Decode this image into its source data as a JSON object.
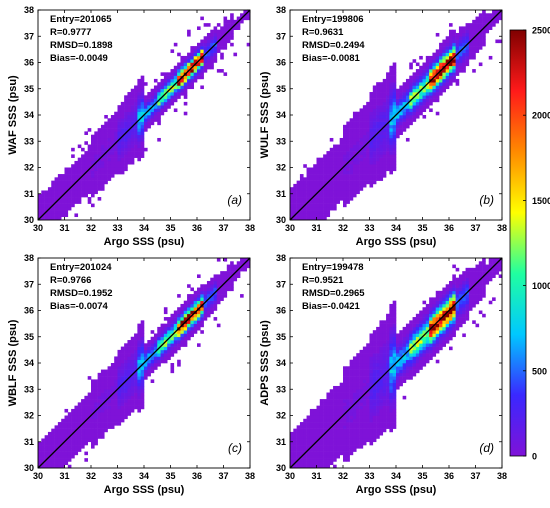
{
  "chart_data": [
    {
      "type": "heatmap",
      "panel_label": "(a)",
      "xlabel": "Argo SSS (psu)",
      "ylabel": "WAF SSS (psu)",
      "xlim": [
        30,
        38
      ],
      "ylim": [
        30,
        38
      ],
      "xticks": [
        "30",
        "31",
        "32",
        "33",
        "34",
        "35",
        "36",
        "37",
        "38"
      ],
      "yticks": [
        "30",
        "31",
        "32",
        "33",
        "34",
        "35",
        "36",
        "37",
        "38"
      ],
      "stats": [
        "Entry=201065",
        "R=0.9777",
        "RMSD=0.1898",
        "Bias=-0.0049"
      ],
      "reference_line": "1:1"
    },
    {
      "type": "heatmap",
      "panel_label": "(b)",
      "xlabel": "Argo SSS (psu)",
      "ylabel": "WULF SSS (psu)",
      "xlim": [
        30,
        38
      ],
      "ylim": [
        30,
        38
      ],
      "xticks": [
        "30",
        "31",
        "32",
        "33",
        "34",
        "35",
        "36",
        "37",
        "38"
      ],
      "yticks": [
        "30",
        "31",
        "32",
        "33",
        "34",
        "35",
        "36",
        "37",
        "38"
      ],
      "stats": [
        "Entry=199806",
        "R=0.9631",
        "RMSD=0.2494",
        "Bias=-0.0081"
      ],
      "reference_line": "1:1"
    },
    {
      "type": "heatmap",
      "panel_label": "(c)",
      "xlabel": "Argo SSS (psu)",
      "ylabel": "WBLF SSS (psu)",
      "xlim": [
        30,
        38
      ],
      "ylim": [
        30,
        38
      ],
      "xticks": [
        "30",
        "31",
        "32",
        "33",
        "34",
        "35",
        "36",
        "37",
        "38"
      ],
      "yticks": [
        "30",
        "31",
        "32",
        "33",
        "34",
        "35",
        "36",
        "37",
        "38"
      ],
      "stats": [
        "Entry=201024",
        "R=0.9766",
        "RMSD=0.1952",
        "Bias=-0.0074"
      ],
      "reference_line": "1:1"
    },
    {
      "type": "heatmap",
      "panel_label": "(d)",
      "xlabel": "Argo SSS (psu)",
      "ylabel": "ADPS SSS (psu)",
      "xlim": [
        30,
        38
      ],
      "ylim": [
        30,
        38
      ],
      "xticks": [
        "30",
        "31",
        "32",
        "33",
        "34",
        "35",
        "36",
        "37",
        "38"
      ],
      "yticks": [
        "30",
        "31",
        "32",
        "33",
        "34",
        "35",
        "36",
        "37",
        "38"
      ],
      "stats": [
        "Entry=199478",
        "R=0.9521",
        "RMSD=0.2965",
        "Bias=-0.0421"
      ],
      "reference_line": "1:1"
    }
  ],
  "colorbar": {
    "range": [
      0,
      2500
    ],
    "ticks": [
      "0",
      "500",
      "1000",
      "1500",
      "2000",
      "2500"
    ],
    "colormap": "jet-with-purple-low",
    "colors": [
      "#7f12d8",
      "#3a28ff",
      "#00c8ff",
      "#20ffa0",
      "#ffff00",
      "#ff8a00",
      "#ff1a1a",
      "#800000"
    ]
  }
}
